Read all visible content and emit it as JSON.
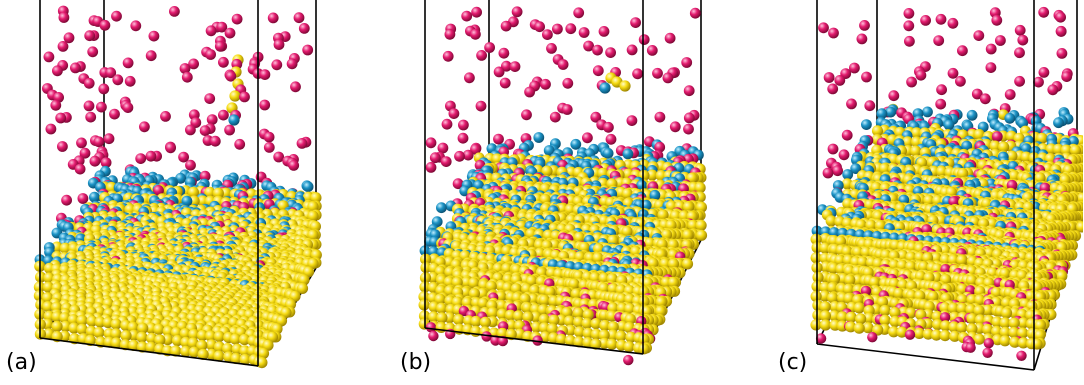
{
  "panels": [
    {
      "label": "(a)"
    },
    {
      "label": "(b)"
    },
    {
      "label": "(c)"
    }
  ],
  "colors": {
    "background": "#ffffff",
    "gold_atom": "#f6dc12",
    "teal_atom": "#1b93c6",
    "magenta_atom": "#e41b6f",
    "frame": "#000000"
  }
}
